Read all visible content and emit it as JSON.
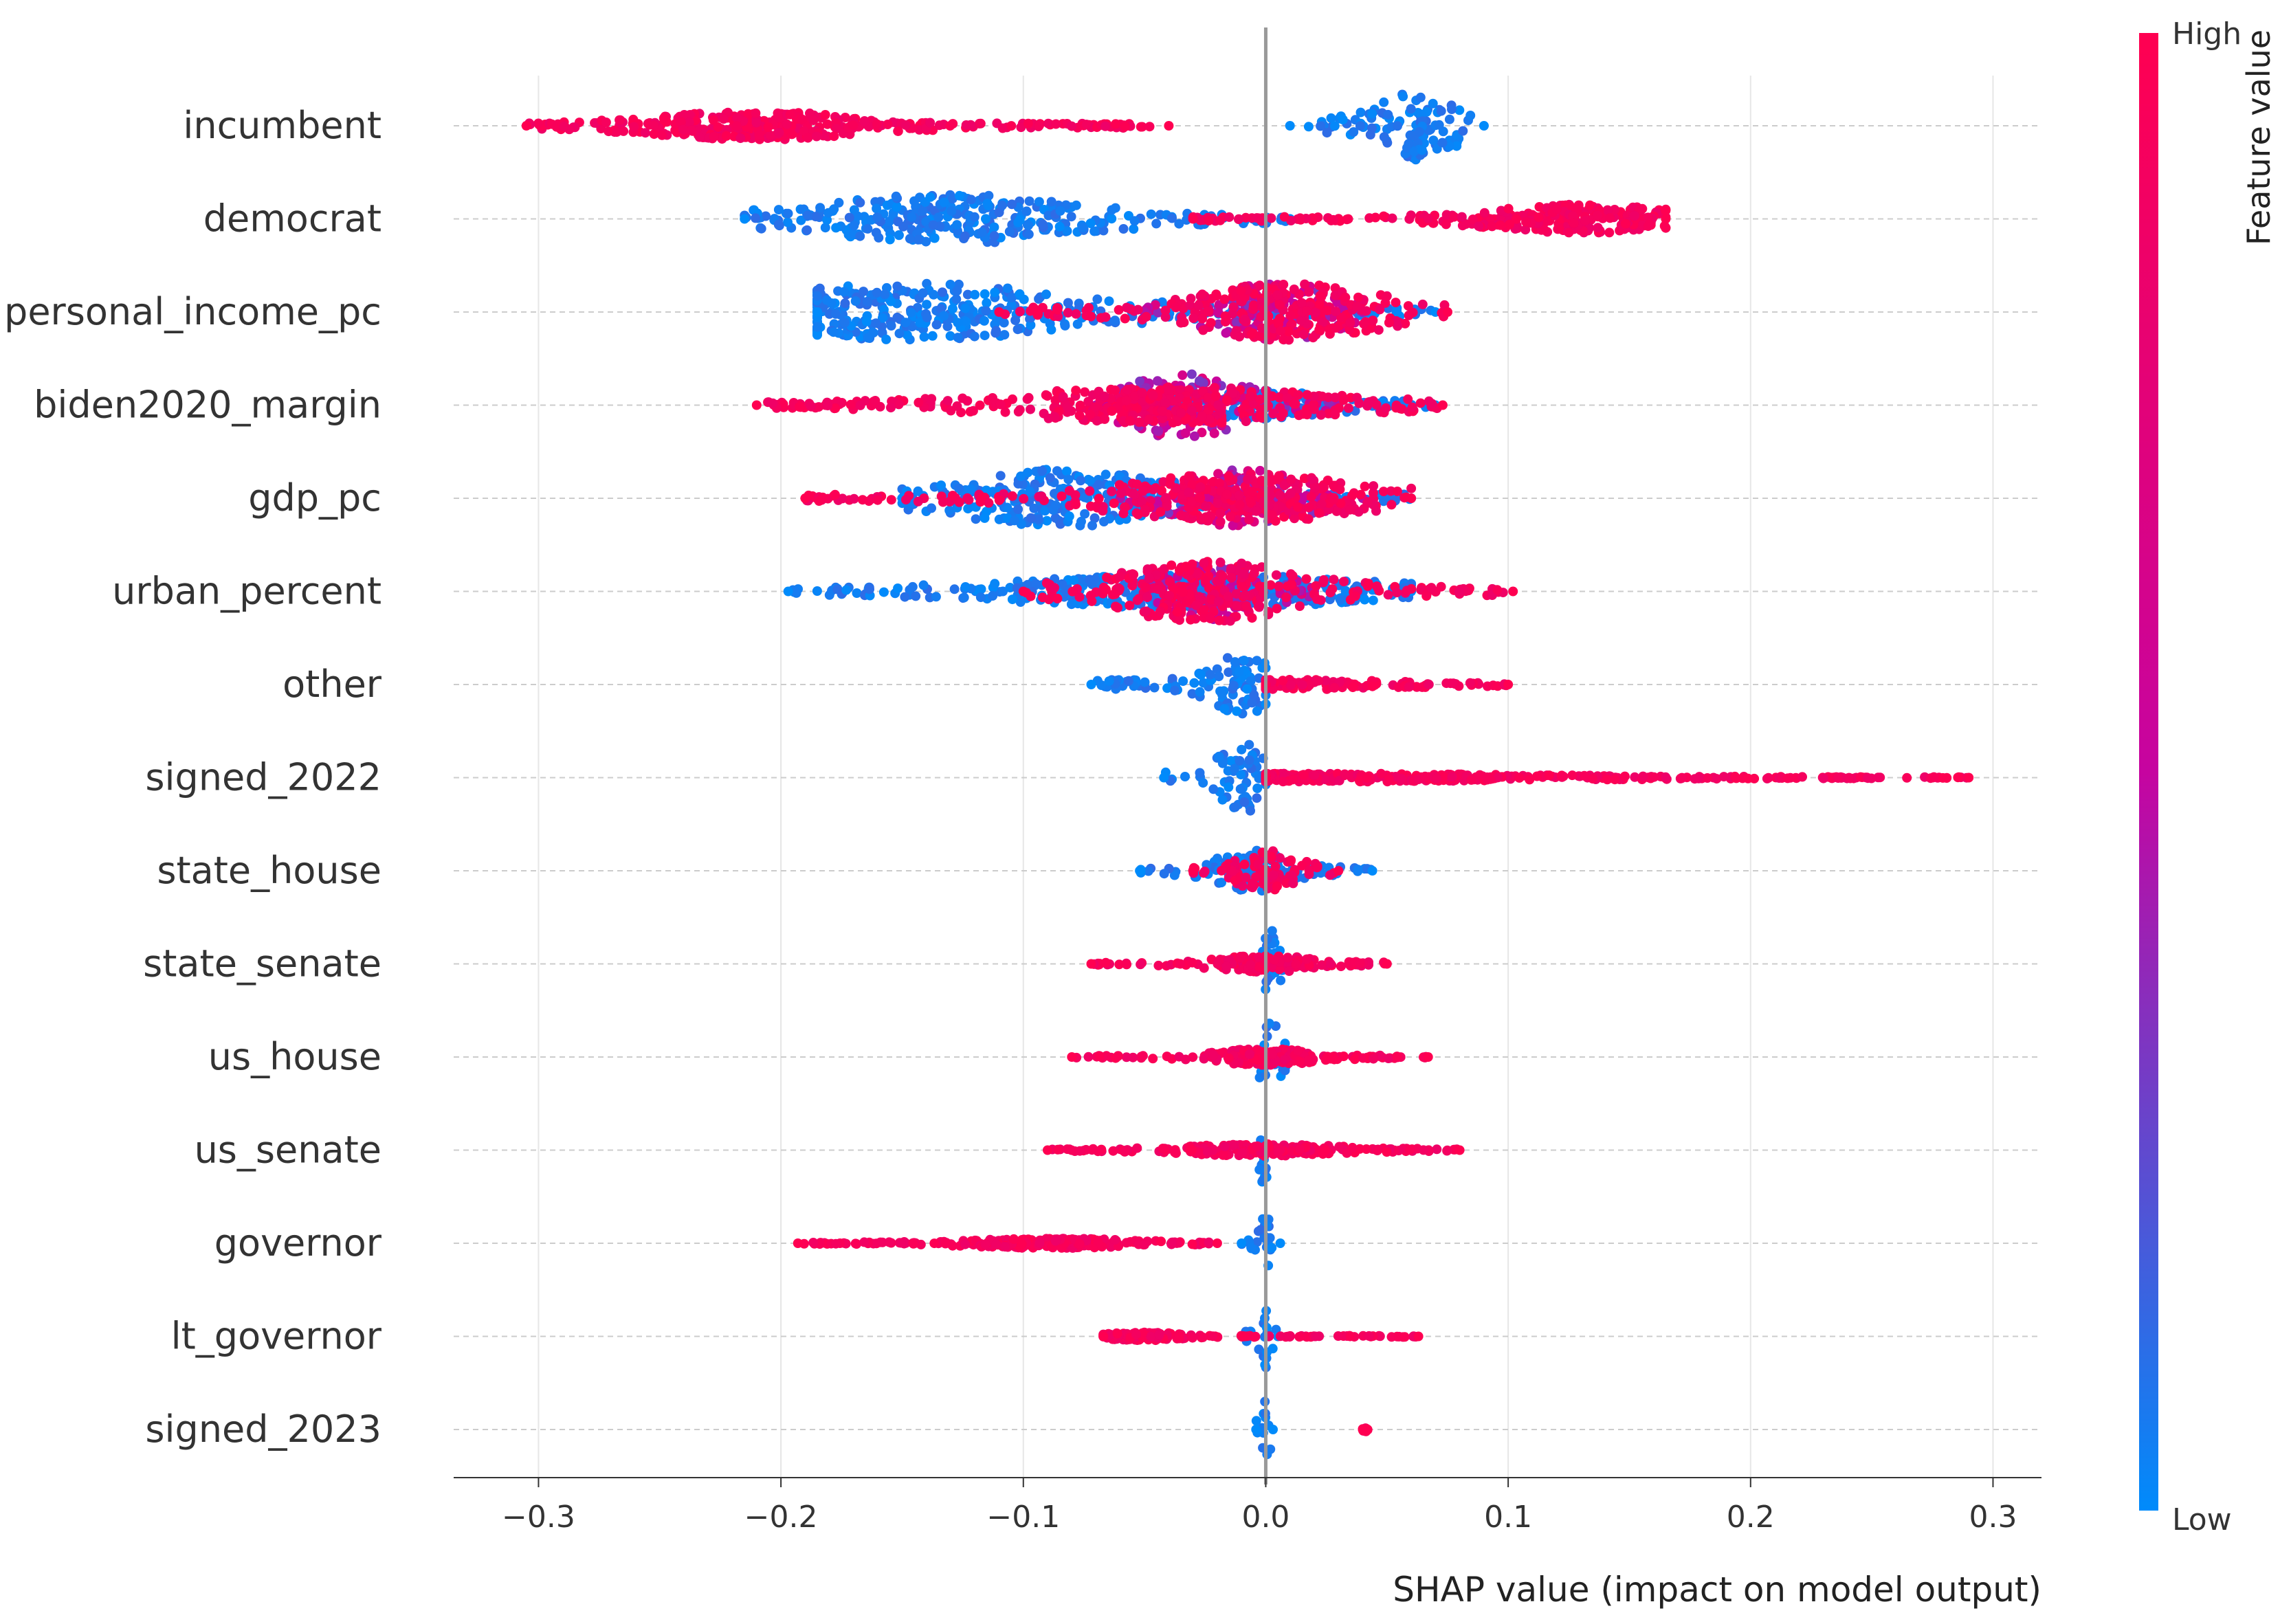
{
  "chart_data": {
    "type": "scatter",
    "subtype": "shap-beeswarm",
    "xlabel": "SHAP value (impact on model output)",
    "xlim": [
      -0.335,
      0.32
    ],
    "xticks": [
      -0.3,
      -0.2,
      -0.1,
      0.0,
      0.1,
      0.2,
      0.3
    ],
    "xtick_labels": [
      "−0.3",
      "−0.2",
      "−0.1",
      "0.0",
      "0.1",
      "0.2",
      "0.3"
    ],
    "zero_line": true,
    "horizontal_grid": true,
    "colorbar": {
      "title": "Feature value",
      "high_label": "High",
      "low_label": "Low",
      "high_color": "#ff0051",
      "mid_color": "#c604a0",
      "low_color": "#008bfb",
      "placement": "right"
    },
    "features": [
      {
        "name": "incumbent",
        "high": {
          "min": -0.305,
          "max": -0.04,
          "peak": -0.21,
          "spread": 0.04,
          "width": 0.35
        },
        "low": {
          "min": 0.01,
          "max": 0.09,
          "peak": 0.062,
          "spread": 0.016,
          "width": 0.85
        }
      },
      {
        "name": "democrat",
        "high": {
          "min": -0.03,
          "max": 0.165,
          "peak": 0.13,
          "spread": 0.035,
          "width": 0.35
        },
        "low": {
          "min": -0.215,
          "max": 0.01,
          "peak": -0.13,
          "spread": 0.05,
          "width": 0.6
        }
      },
      {
        "name": "personal_income_pc",
        "high": {
          "min": -0.11,
          "max": 0.075,
          "peak": 0.01,
          "spread": 0.035,
          "width": 0.7
        },
        "mid": {
          "min": -0.05,
          "max": 0.04,
          "peak": 0.005,
          "spread": 0.025,
          "width": 0.7
        },
        "low": {
          "min": -0.185,
          "max": 0.07,
          "peak": -0.145,
          "spread": 0.06,
          "width": 0.7
        }
      },
      {
        "name": "biden2020_margin",
        "high": {
          "min": -0.21,
          "max": 0.073,
          "peak": -0.04,
          "spread": 0.06,
          "width": 0.45
        },
        "mid": {
          "min": -0.07,
          "max": 0.03,
          "peak": -0.035,
          "spread": 0.025,
          "width": 0.8
        },
        "low": {
          "min": -0.06,
          "max": 0.07,
          "peak": 0.0,
          "spread": 0.03,
          "width": 0.35
        }
      },
      {
        "name": "gdp_pc",
        "high": {
          "min": -0.19,
          "max": 0.06,
          "peak": -0.01,
          "spread": 0.045,
          "width": 0.6
        },
        "mid": {
          "min": -0.06,
          "max": 0.04,
          "peak": -0.01,
          "spread": 0.025,
          "width": 0.7
        },
        "low": {
          "min": -0.15,
          "max": 0.06,
          "peak": -0.085,
          "spread": 0.04,
          "width": 0.7
        }
      },
      {
        "name": "urban_percent",
        "high": {
          "min": -0.1,
          "max": 0.102,
          "peak": -0.025,
          "spread": 0.035,
          "width": 0.75
        },
        "mid": {
          "min": -0.05,
          "max": 0.02,
          "peak": -0.02,
          "spread": 0.02,
          "width": 0.7
        },
        "low": {
          "min": -0.197,
          "max": 0.06,
          "peak": -0.03,
          "spread": 0.07,
          "width": 0.4
        }
      },
      {
        "name": "other",
        "high": {
          "min": 0.0,
          "max": 0.1,
          "peak": 0.01,
          "spread": 0.05,
          "width": 0.12
        },
        "low": {
          "min": -0.072,
          "max": 0.0,
          "peak": -0.01,
          "spread": 0.012,
          "width": 0.75
        }
      },
      {
        "name": "signed_2022",
        "high": {
          "min": 0.0,
          "max": 0.29,
          "peak": 0.02,
          "spread": 0.09,
          "width": 0.1
        },
        "low": {
          "min": -0.042,
          "max": 0.0,
          "peak": -0.01,
          "spread": 0.01,
          "width": 0.85
        }
      },
      {
        "name": "state_house",
        "high": {
          "min": -0.03,
          "max": 0.03,
          "peak": 0.0,
          "spread": 0.012,
          "width": 0.5
        },
        "low": {
          "min": -0.052,
          "max": 0.044,
          "peak": -0.005,
          "spread": 0.015,
          "width": 0.5
        }
      },
      {
        "name": "state_senate",
        "high": {
          "min": -0.072,
          "max": 0.05,
          "peak": 0.0,
          "spread": 0.02,
          "width": 0.2
        },
        "low": {
          "min": -0.01,
          "max": 0.01,
          "peak": 0.002,
          "spread": 0.004,
          "width": 0.85
        }
      },
      {
        "name": "us_house",
        "high": {
          "min": -0.08,
          "max": 0.067,
          "peak": 0.0,
          "spread": 0.02,
          "width": 0.2
        },
        "low": {
          "min": -0.01,
          "max": 0.01,
          "peak": 0.002,
          "spread": 0.004,
          "width": 0.85
        }
      },
      {
        "name": "us_senate",
        "high": {
          "min": -0.09,
          "max": 0.08,
          "peak": 0.0,
          "spread": 0.03,
          "width": 0.15
        },
        "low": {
          "min": -0.005,
          "max": 0.005,
          "peak": -0.001,
          "spread": 0.002,
          "width": 0.8
        }
      },
      {
        "name": "governor",
        "high": {
          "min": -0.193,
          "max": -0.02,
          "peak": -0.09,
          "spread": 0.035,
          "width": 0.12
        },
        "low": {
          "min": -0.01,
          "max": 0.006,
          "peak": 0.0,
          "spread": 0.002,
          "width": 0.8
        }
      },
      {
        "name": "lt_governor",
        "high": {
          "min": -0.067,
          "max": 0.063,
          "peak": -0.05,
          "spread": 0.015,
          "width": 0.1
        },
        "low": {
          "min": -0.01,
          "max": 0.005,
          "peak": 0.0,
          "spread": 0.002,
          "width": 0.8
        }
      },
      {
        "name": "signed_2023",
        "high": {
          "min": 0.04,
          "max": 0.042,
          "peak": 0.041,
          "spread": 0.001,
          "width": 0.05
        },
        "low": {
          "min": -0.004,
          "max": 0.003,
          "peak": 0.0,
          "spread": 0.002,
          "width": 0.8
        }
      }
    ]
  }
}
